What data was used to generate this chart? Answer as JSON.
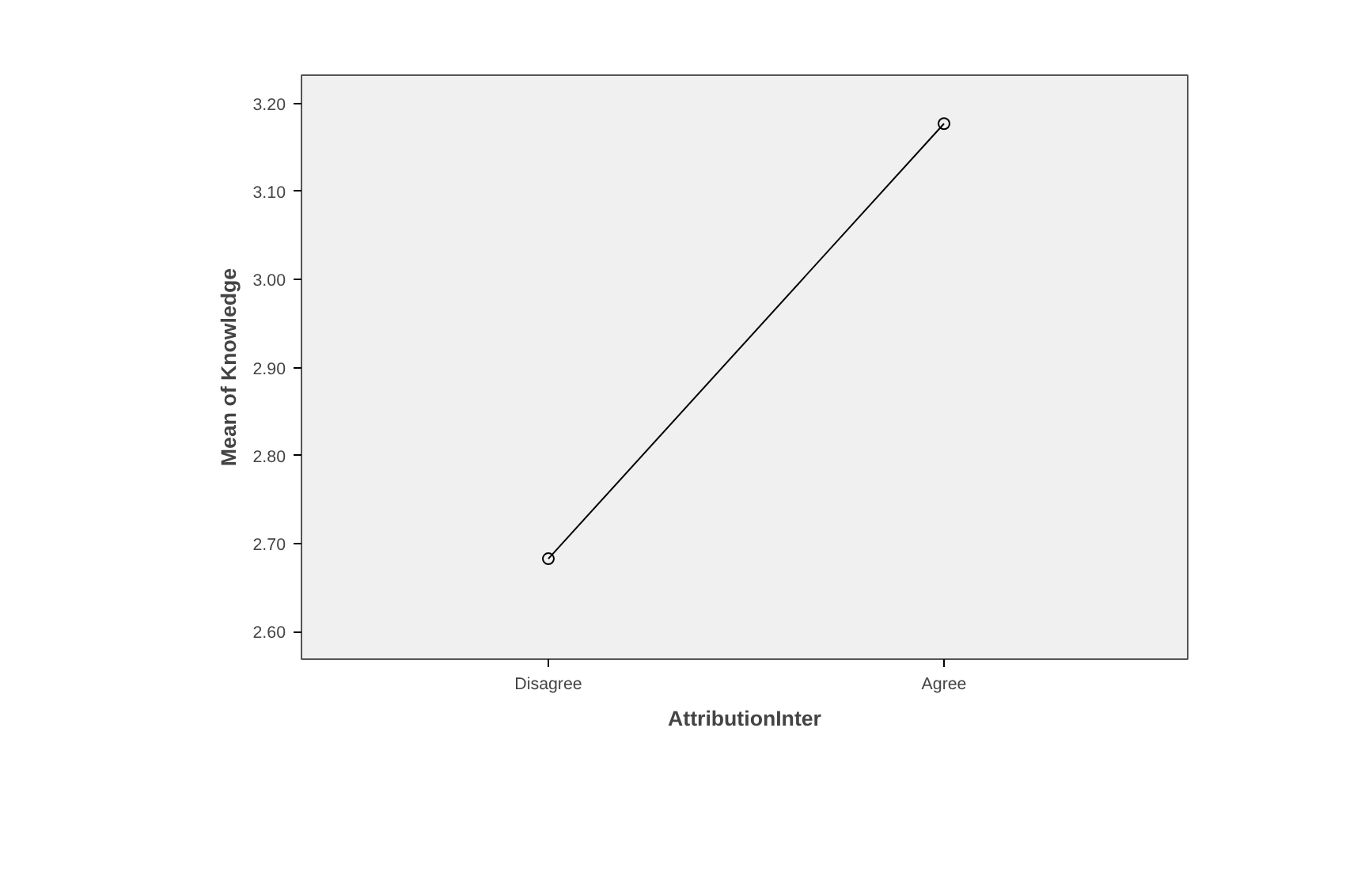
{
  "chart_data": {
    "type": "line",
    "xlabel": "AttributionInter",
    "ylabel": "Mean of Knowledge",
    "categories": [
      "Disagree",
      "Agree"
    ],
    "series": [
      {
        "color": "#000000",
        "values": [
          2.683,
          3.177
        ]
      }
    ],
    "ylim": [
      2.569,
      3.232
    ],
    "yticks": [
      {
        "value": 2.6,
        "label": "2.60"
      },
      {
        "value": 2.7,
        "label": "2.70"
      },
      {
        "value": 2.8,
        "label": "2.80"
      },
      {
        "value": 2.9,
        "label": "2.90"
      },
      {
        "value": 3.0,
        "label": "3.00"
      },
      {
        "value": 3.1,
        "label": "3.10"
      },
      {
        "value": 3.2,
        "label": "3.20"
      }
    ],
    "grid": false,
    "marker": "circle",
    "line_style": "solid"
  }
}
